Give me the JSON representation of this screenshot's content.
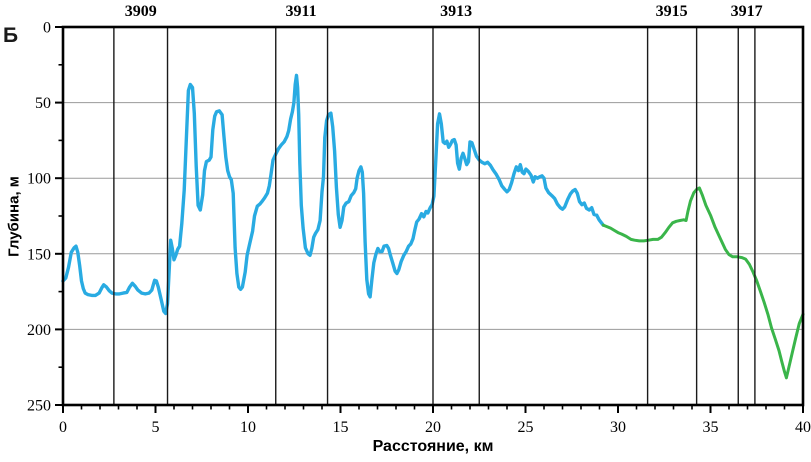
{
  "labels": {
    "corner": "Б"
  },
  "colors": {
    "line_blue": "#29abe2",
    "line_green": "#3ab54a",
    "grid": "#9a9a9a",
    "axis": "#000000",
    "section_line": "#1a1a1a"
  },
  "chart_data": {
    "type": "line",
    "title": "",
    "xlabel": "Расстояние, км",
    "ylabel": "Глубина, м",
    "xlim": [
      0,
      40
    ],
    "ylim": [
      0,
      250
    ],
    "y_inverted": true,
    "grid": "horizontal-only",
    "legend": "none",
    "x_major_ticks": [
      0,
      5,
      10,
      15,
      20,
      25,
      30,
      35,
      40
    ],
    "x_minor_step": 1,
    "y_major_ticks": [
      0,
      50,
      100,
      150,
      200,
      250
    ],
    "y_minor_step": 25,
    "gridlines_y": [
      50,
      100,
      150,
      200
    ],
    "section_lines_km": [
      2.75,
      5.65,
      11.5,
      14.3,
      20.0,
      22.5,
      31.6,
      34.25,
      36.5,
      37.4
    ],
    "section_labels": [
      {
        "text": "3909",
        "km": 4.2
      },
      {
        "text": "3911",
        "km": 12.87
      },
      {
        "text": "3913",
        "km": 21.25
      },
      {
        "text": "3915",
        "km": 32.9
      },
      {
        "text": "3917",
        "km": 36.95
      }
    ],
    "series": [
      {
        "name": "segment-blue",
        "color_key": "line_blue",
        "width": 3.4,
        "points": [
          [
            0,
            168
          ],
          [
            0.15,
            166
          ],
          [
            0.3,
            159
          ],
          [
            0.45,
            149
          ],
          [
            0.6,
            146
          ],
          [
            0.7,
            145
          ],
          [
            0.8,
            149
          ],
          [
            0.9,
            158
          ],
          [
            1.0,
            168
          ],
          [
            1.1,
            173
          ],
          [
            1.2,
            176
          ],
          [
            1.35,
            177
          ],
          [
            1.55,
            177.5
          ],
          [
            1.75,
            177.5
          ],
          [
            1.95,
            176
          ],
          [
            2.1,
            172.5
          ],
          [
            2.2,
            170.5
          ],
          [
            2.35,
            172
          ],
          [
            2.5,
            174.5
          ],
          [
            2.65,
            176
          ],
          [
            2.85,
            176.5
          ],
          [
            3.05,
            176.5
          ],
          [
            3.25,
            176
          ],
          [
            3.45,
            175.5
          ],
          [
            3.6,
            172
          ],
          [
            3.75,
            169.5
          ],
          [
            3.9,
            171.5
          ],
          [
            4.05,
            174
          ],
          [
            4.25,
            176
          ],
          [
            4.45,
            176.5
          ],
          [
            4.65,
            176
          ],
          [
            4.8,
            174
          ],
          [
            4.95,
            167.5
          ],
          [
            5.05,
            168
          ],
          [
            5.15,
            172
          ],
          [
            5.3,
            180
          ],
          [
            5.45,
            188
          ],
          [
            5.55,
            189.5
          ],
          [
            5.65,
            183
          ],
          [
            5.75,
            158
          ],
          [
            5.82,
            141
          ],
          [
            5.9,
            146
          ],
          [
            6.0,
            154
          ],
          [
            6.1,
            151
          ],
          [
            6.2,
            147
          ],
          [
            6.3,
            145
          ],
          [
            6.42,
            130
          ],
          [
            6.55,
            108
          ],
          [
            6.68,
            70
          ],
          [
            6.78,
            42
          ],
          [
            6.88,
            38
          ],
          [
            7.0,
            40
          ],
          [
            7.1,
            57
          ],
          [
            7.2,
            92
          ],
          [
            7.3,
            118
          ],
          [
            7.42,
            121
          ],
          [
            7.55,
            111
          ],
          [
            7.65,
            95
          ],
          [
            7.75,
            89
          ],
          [
            7.9,
            88
          ],
          [
            8.0,
            86
          ],
          [
            8.1,
            68
          ],
          [
            8.2,
            59
          ],
          [
            8.3,
            56
          ],
          [
            8.45,
            55.5
          ],
          [
            8.6,
            58
          ],
          [
            8.7,
            72
          ],
          [
            8.8,
            86
          ],
          [
            8.9,
            95
          ],
          [
            9.0,
            99
          ],
          [
            9.1,
            101
          ],
          [
            9.2,
            110
          ],
          [
            9.3,
            146
          ],
          [
            9.4,
            163
          ],
          [
            9.5,
            172
          ],
          [
            9.6,
            173.5
          ],
          [
            9.7,
            172
          ],
          [
            9.85,
            162
          ],
          [
            9.95,
            151
          ],
          [
            10.1,
            143
          ],
          [
            10.25,
            135
          ],
          [
            10.35,
            125
          ],
          [
            10.5,
            118.5
          ],
          [
            10.65,
            117
          ],
          [
            10.75,
            115.5
          ],
          [
            10.9,
            113
          ],
          [
            11.05,
            110
          ],
          [
            11.15,
            105
          ],
          [
            11.25,
            97
          ],
          [
            11.35,
            88
          ],
          [
            11.5,
            84
          ],
          [
            11.65,
            80.5
          ],
          [
            11.8,
            78
          ],
          [
            11.95,
            76
          ],
          [
            12.1,
            72.5
          ],
          [
            12.2,
            68.5
          ],
          [
            12.3,
            61
          ],
          [
            12.4,
            56
          ],
          [
            12.48,
            50
          ],
          [
            12.55,
            38
          ],
          [
            12.62,
            32
          ],
          [
            12.68,
            40
          ],
          [
            12.74,
            58
          ],
          [
            12.8,
            90
          ],
          [
            12.88,
            118
          ],
          [
            12.98,
            133
          ],
          [
            13.1,
            146
          ],
          [
            13.25,
            150
          ],
          [
            13.35,
            151
          ],
          [
            13.45,
            146.5
          ],
          [
            13.55,
            139
          ],
          [
            13.65,
            136.5
          ],
          [
            13.78,
            134
          ],
          [
            13.9,
            128
          ],
          [
            14.0,
            109
          ],
          [
            14.08,
            99
          ],
          [
            14.15,
            73
          ],
          [
            14.25,
            62
          ],
          [
            14.35,
            58
          ],
          [
            14.48,
            57
          ],
          [
            14.58,
            66
          ],
          [
            14.68,
            82
          ],
          [
            14.78,
            106
          ],
          [
            14.88,
            124
          ],
          [
            14.98,
            132.5
          ],
          [
            15.08,
            128
          ],
          [
            15.18,
            119
          ],
          [
            15.3,
            116.5
          ],
          [
            15.45,
            115.5
          ],
          [
            15.58,
            111.5
          ],
          [
            15.72,
            109.5
          ],
          [
            15.82,
            107
          ],
          [
            15.9,
            100
          ],
          [
            16.0,
            95
          ],
          [
            16.1,
            92.5
          ],
          [
            16.18,
            96
          ],
          [
            16.25,
            110
          ],
          [
            16.33,
            142
          ],
          [
            16.42,
            167
          ],
          [
            16.52,
            176.5
          ],
          [
            16.6,
            178.5
          ],
          [
            16.7,
            167
          ],
          [
            16.8,
            156
          ],
          [
            16.92,
            150
          ],
          [
            17.02,
            146.5
          ],
          [
            17.12,
            148.5
          ],
          [
            17.25,
            148.5
          ],
          [
            17.35,
            145
          ],
          [
            17.5,
            144.5
          ],
          [
            17.6,
            146.5
          ],
          [
            17.7,
            151
          ],
          [
            17.82,
            156
          ],
          [
            17.95,
            161.5
          ],
          [
            18.05,
            163
          ],
          [
            18.15,
            160.5
          ],
          [
            18.28,
            155
          ],
          [
            18.42,
            151
          ],
          [
            18.55,
            148.5
          ],
          [
            18.68,
            145
          ],
          [
            18.8,
            143.5
          ],
          [
            18.92,
            140
          ],
          [
            19.02,
            134
          ],
          [
            19.12,
            129
          ],
          [
            19.25,
            127
          ],
          [
            19.38,
            123.5
          ],
          [
            19.5,
            125.5
          ],
          [
            19.62,
            122
          ],
          [
            19.72,
            123
          ],
          [
            19.85,
            119.5
          ],
          [
            19.95,
            117.5
          ],
          [
            20.05,
            112
          ],
          [
            20.15,
            88
          ],
          [
            20.25,
            64
          ],
          [
            20.35,
            57.5
          ],
          [
            20.45,
            64
          ],
          [
            20.55,
            76
          ],
          [
            20.65,
            77
          ],
          [
            20.75,
            75.5
          ],
          [
            20.85,
            79.5
          ],
          [
            20.95,
            77.5
          ],
          [
            21.05,
            75
          ],
          [
            21.15,
            74.5
          ],
          [
            21.25,
            78
          ],
          [
            21.33,
            90
          ],
          [
            21.42,
            94
          ],
          [
            21.52,
            87
          ],
          [
            21.62,
            83.5
          ],
          [
            21.72,
            87
          ],
          [
            21.82,
            91
          ],
          [
            21.92,
            89
          ],
          [
            22.0,
            76
          ],
          [
            22.1,
            76.5
          ],
          [
            22.2,
            80
          ],
          [
            22.35,
            85.5
          ],
          [
            22.5,
            88
          ],
          [
            22.65,
            89.5
          ],
          [
            22.8,
            90.5
          ],
          [
            22.95,
            89.5
          ],
          [
            23.1,
            91.5
          ],
          [
            23.25,
            94.5
          ],
          [
            23.42,
            97.5
          ],
          [
            23.58,
            101
          ],
          [
            23.72,
            105
          ],
          [
            23.88,
            107.5
          ],
          [
            24.0,
            109
          ],
          [
            24.12,
            107.5
          ],
          [
            24.25,
            103
          ],
          [
            24.38,
            97
          ],
          [
            24.5,
            92.5
          ],
          [
            24.62,
            95
          ],
          [
            24.72,
            91
          ],
          [
            24.82,
            96
          ],
          [
            24.92,
            97
          ],
          [
            25.02,
            94
          ],
          [
            25.15,
            95.5
          ],
          [
            25.3,
            98
          ],
          [
            25.42,
            102.5
          ],
          [
            25.52,
            99
          ],
          [
            25.65,
            100
          ],
          [
            25.78,
            99
          ],
          [
            25.9,
            98.5
          ],
          [
            26.0,
            100
          ],
          [
            26.1,
            106.5
          ],
          [
            26.25,
            109.5
          ],
          [
            26.42,
            111.5
          ],
          [
            26.58,
            113.5
          ],
          [
            26.72,
            117
          ],
          [
            26.88,
            119.5
          ],
          [
            27.0,
            120.5
          ],
          [
            27.12,
            119
          ],
          [
            27.28,
            114
          ],
          [
            27.42,
            110.5
          ],
          [
            27.55,
            108.5
          ],
          [
            27.68,
            107.5
          ],
          [
            27.8,
            110
          ],
          [
            27.92,
            115.5
          ],
          [
            28.05,
            117.5
          ],
          [
            28.18,
            116.5
          ],
          [
            28.3,
            120
          ],
          [
            28.45,
            121
          ],
          [
            28.58,
            119.5
          ],
          [
            28.7,
            124
          ],
          [
            28.85,
            124.5
          ],
          [
            28.98,
            127.5
          ],
          [
            29.1,
            129.5
          ],
          [
            29.2,
            131
          ]
        ]
      },
      {
        "name": "segment-green",
        "color_key": "line_green",
        "width": 3.0,
        "points": [
          [
            29.2,
            131
          ],
          [
            29.4,
            132
          ],
          [
            29.6,
            133
          ],
          [
            29.8,
            134.5
          ],
          [
            30.0,
            136
          ],
          [
            30.2,
            137
          ],
          [
            30.45,
            138.5
          ],
          [
            30.7,
            140.5
          ],
          [
            30.9,
            141
          ],
          [
            31.15,
            141.5
          ],
          [
            31.4,
            141.5
          ],
          [
            31.65,
            141
          ],
          [
            31.9,
            140.5
          ],
          [
            32.15,
            140.5
          ],
          [
            32.35,
            139
          ],
          [
            32.55,
            136
          ],
          [
            32.75,
            132.5
          ],
          [
            32.95,
            129.5
          ],
          [
            33.15,
            128.5
          ],
          [
            33.35,
            128
          ],
          [
            33.55,
            127.5
          ],
          [
            33.68,
            128
          ],
          [
            33.78,
            122
          ],
          [
            33.92,
            115
          ],
          [
            34.1,
            109.5
          ],
          [
            34.25,
            107.5
          ],
          [
            34.4,
            106.5
          ],
          [
            34.55,
            111
          ],
          [
            34.75,
            118
          ],
          [
            35.0,
            124.5
          ],
          [
            35.25,
            132.5
          ],
          [
            35.55,
            140.5
          ],
          [
            35.8,
            147
          ],
          [
            36.0,
            150.5
          ],
          [
            36.2,
            152
          ],
          [
            36.45,
            152
          ],
          [
            36.7,
            152.5
          ],
          [
            36.9,
            153.5
          ],
          [
            37.1,
            157
          ],
          [
            37.3,
            162
          ],
          [
            37.5,
            168
          ],
          [
            37.7,
            175
          ],
          [
            37.9,
            182
          ],
          [
            38.1,
            190
          ],
          [
            38.3,
            199
          ],
          [
            38.5,
            206.5
          ],
          [
            38.7,
            214
          ],
          [
            38.85,
            221
          ],
          [
            39.0,
            228
          ],
          [
            39.1,
            232
          ],
          [
            39.2,
            227
          ],
          [
            39.4,
            216.5
          ],
          [
            39.6,
            206
          ],
          [
            39.8,
            196
          ],
          [
            40.0,
            190
          ]
        ]
      }
    ]
  }
}
